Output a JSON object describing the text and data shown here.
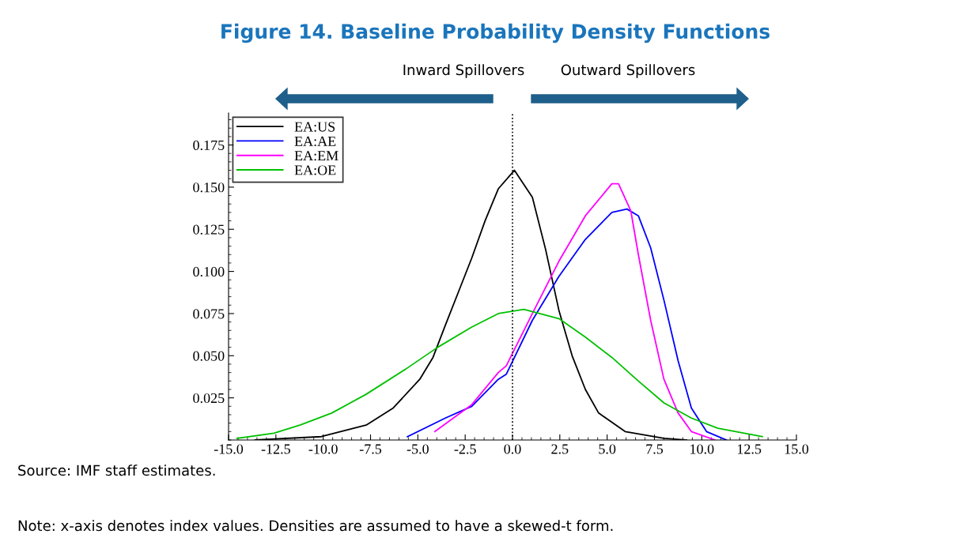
{
  "chart_data": {
    "type": "line",
    "title": "Figure 14. Baseline Probability Density Functions",
    "annotations": [
      "Inward Spillovers",
      "Outward Spillovers",
      "Source: IMF staff estimates.",
      "Note: x-axis denotes index values. Densities are assumed to have a skewed-t form."
    ],
    "series": [
      {
        "name": "EA:US",
        "color": "#000000",
        "x": [
          -13.6,
          -10.1,
          -7.7,
          -6.3,
          -4.9,
          -4.2,
          -3.55,
          -2.85,
          -2.15,
          -1.45,
          -0.75,
          0.1,
          1.05,
          1.75,
          2.45,
          3.15,
          3.85,
          4.55,
          5.95,
          8.0,
          9.2
        ],
        "values": [
          0.0,
          0.002,
          0.009,
          0.019,
          0.036,
          0.049,
          0.068,
          0.088,
          0.108,
          0.13,
          0.149,
          0.16,
          0.144,
          0.113,
          0.077,
          0.05,
          0.03,
          0.016,
          0.005,
          0.001,
          0.0
        ]
      },
      {
        "name": "EA:AE",
        "color": "#0000ff",
        "x": [
          -5.55,
          -3.55,
          -2.15,
          -0.75,
          -0.33,
          1.05,
          2.45,
          3.85,
          5.25,
          6.05,
          6.65,
          7.3,
          8.0,
          8.75,
          9.45,
          10.25,
          11.3
        ],
        "values": [
          0.002,
          0.013,
          0.02,
          0.036,
          0.039,
          0.071,
          0.097,
          0.119,
          0.135,
          0.137,
          0.133,
          0.114,
          0.083,
          0.047,
          0.019,
          0.005,
          0.0
        ]
      },
      {
        "name": "EA:EM",
        "color": "#ff00ff",
        "x": [
          -4.1,
          -2.15,
          -0.75,
          -0.33,
          1.05,
          2.45,
          3.85,
          5.25,
          5.6,
          6.25,
          6.65,
          7.3,
          8.0,
          8.75,
          9.45,
          10.7
        ],
        "values": [
          0.005,
          0.021,
          0.04,
          0.044,
          0.075,
          0.106,
          0.133,
          0.152,
          0.152,
          0.136,
          0.11,
          0.071,
          0.036,
          0.016,
          0.005,
          0.0
        ]
      },
      {
        "name": "EA:OE",
        "color": "#00c000",
        "x": [
          -14.55,
          -12.6,
          -11.2,
          -9.55,
          -7.75,
          -5.65,
          -3.95,
          -2.15,
          -0.75,
          0.6,
          2.45,
          3.85,
          5.25,
          6.65,
          8.0,
          9.45,
          10.85,
          13.2
        ],
        "values": [
          0.001,
          0.004,
          0.009,
          0.016,
          0.027,
          0.042,
          0.055,
          0.067,
          0.075,
          0.0775,
          0.072,
          0.061,
          0.049,
          0.035,
          0.022,
          0.013,
          0.007,
          0.002
        ]
      }
    ],
    "xlim": [
      -15.0,
      15.0
    ],
    "xticks": [
      {
        "value": -15,
        "label": "-15.0"
      },
      {
        "value": -12.5,
        "label": "-12.5"
      },
      {
        "value": -10,
        "label": "-10.0"
      },
      {
        "value": -7.5,
        "label": "-7.5"
      },
      {
        "value": -5,
        "label": "-5.0"
      },
      {
        "value": -2.5,
        "label": "-2.5"
      },
      {
        "value": 0,
        "label": "0.0"
      },
      {
        "value": 2.5,
        "label": "2.5"
      },
      {
        "value": 5,
        "label": "5.0"
      },
      {
        "value": 7.5,
        "label": "7.5"
      },
      {
        "value": 10,
        "label": "10.0"
      },
      {
        "value": 12.5,
        "label": "12.5"
      },
      {
        "value": 15,
        "label": "15.0"
      }
    ],
    "ylim": [
      0,
      0.194
    ],
    "yticks": [
      0.025,
      {
        "value": 0.05,
        "label": "0.050"
      },
      0.075,
      {
        "value": 0.1,
        "label": "0.100"
      },
      0.125,
      {
        "value": 0.15,
        "label": "0.150"
      },
      0.175
    ],
    "ref_lines": [
      {
        "axis": "x",
        "value": 0,
        "color": "#000000",
        "line_style": "dotted"
      }
    ],
    "grid": false,
    "legend": "top left",
    "marker": "none",
    "line_style": "solid"
  }
}
